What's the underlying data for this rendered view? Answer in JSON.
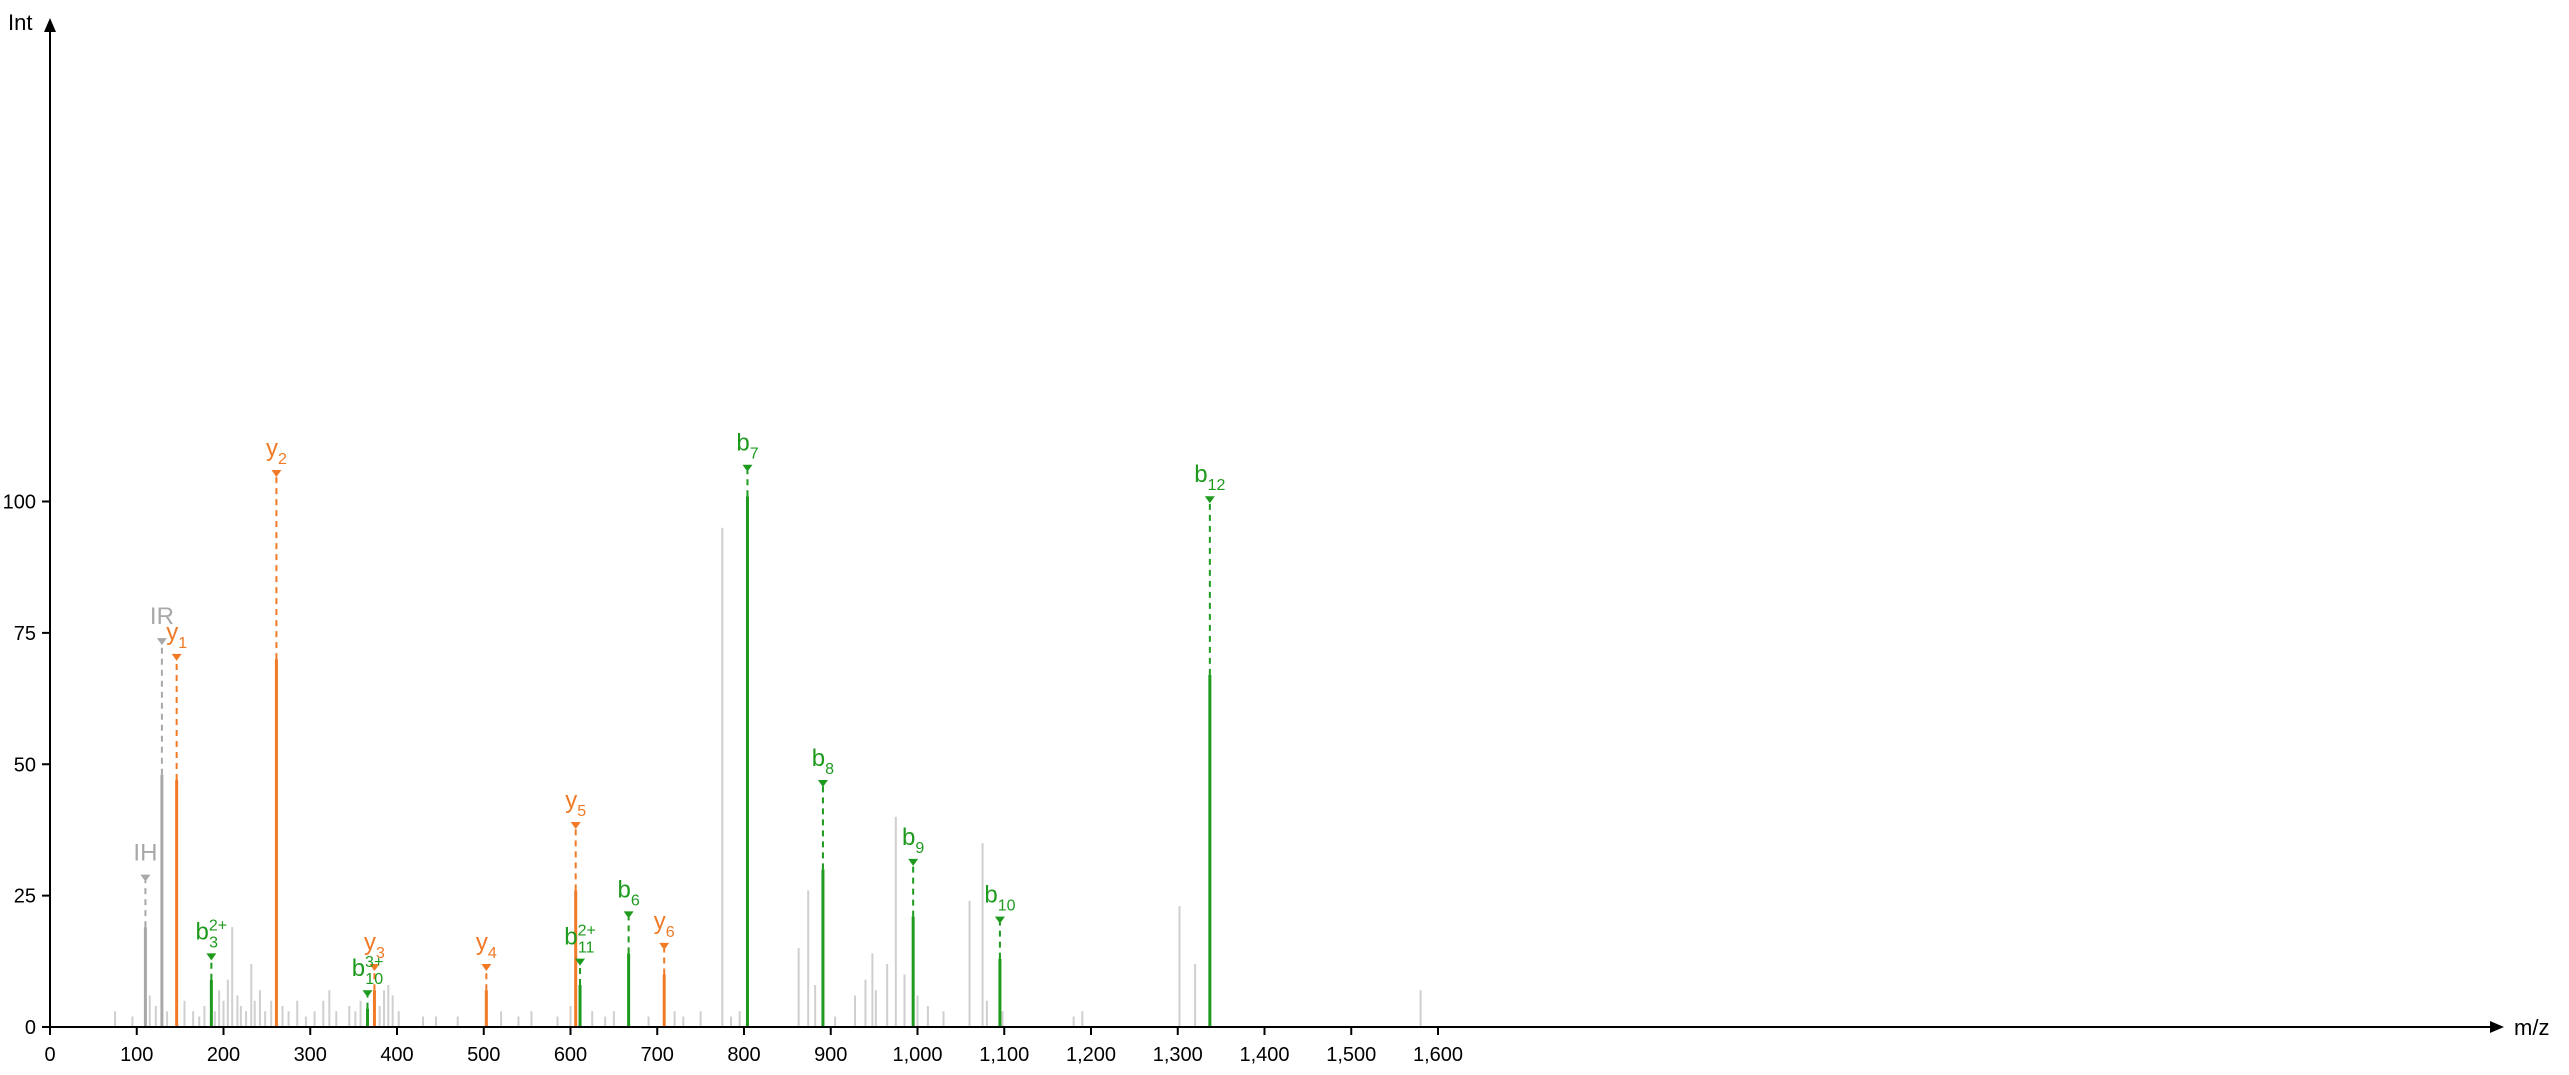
{
  "chart_data": {
    "type": "bar",
    "title": "",
    "xlabel": "m/z",
    "ylabel": "Int",
    "xlim": [
      0,
      1700
    ],
    "ylim": [
      0,
      115
    ],
    "x_ticks": [
      {
        "value": 0,
        "label": "0"
      },
      {
        "value": 100,
        "label": "100"
      },
      {
        "value": 200,
        "label": "200"
      },
      {
        "value": 300,
        "label": "300"
      },
      {
        "value": 400,
        "label": "400"
      },
      {
        "value": 500,
        "label": "500"
      },
      {
        "value": 600,
        "label": "600"
      },
      {
        "value": 700,
        "label": "700"
      },
      {
        "value": 800,
        "label": "800"
      },
      {
        "value": 900,
        "label": "900"
      },
      {
        "value": 1000,
        "label": "1,000"
      },
      {
        "value": 1100,
        "label": "1,100"
      },
      {
        "value": 1200,
        "label": "1,200"
      },
      {
        "value": 1300,
        "label": "1,300"
      },
      {
        "value": 1400,
        "label": "1,400"
      },
      {
        "value": 1500,
        "label": "1,500"
      },
      {
        "value": 1600,
        "label": "1,600"
      }
    ],
    "y_ticks": [
      {
        "value": 0,
        "label": "0"
      },
      {
        "value": 25,
        "label": "25"
      },
      {
        "value": 50,
        "label": "50"
      },
      {
        "value": 75,
        "label": "75"
      },
      {
        "value": 100,
        "label": "100"
      }
    ],
    "grid": false,
    "colors": {
      "y": "#f07a25",
      "b": "#1e9a1e",
      "other": "#a8a8a8",
      "noise": "#cfcfcf"
    },
    "noise_peaks": [
      [
        75,
        3
      ],
      [
        95,
        2
      ],
      [
        115,
        6
      ],
      [
        122,
        4
      ],
      [
        135,
        3
      ],
      [
        155,
        5
      ],
      [
        165,
        3
      ],
      [
        172,
        2
      ],
      [
        178,
        4
      ],
      [
        190,
        3
      ],
      [
        195,
        7
      ],
      [
        200,
        5
      ],
      [
        205,
        9
      ],
      [
        210,
        19
      ],
      [
        216,
        6
      ],
      [
        220,
        4
      ],
      [
        226,
        3
      ],
      [
        232,
        12
      ],
      [
        236,
        5
      ],
      [
        242,
        7
      ],
      [
        248,
        3
      ],
      [
        255,
        5
      ],
      [
        268,
        4
      ],
      [
        275,
        3
      ],
      [
        285,
        5
      ],
      [
        295,
        2
      ],
      [
        305,
        3
      ],
      [
        315,
        5
      ],
      [
        322,
        7
      ],
      [
        330,
        3
      ],
      [
        345,
        4
      ],
      [
        352,
        3
      ],
      [
        358,
        5
      ],
      [
        380,
        4
      ],
      [
        385,
        7
      ],
      [
        390,
        8
      ],
      [
        395,
        6
      ],
      [
        402,
        3
      ],
      [
        430,
        2
      ],
      [
        445,
        2
      ],
      [
        470,
        2
      ],
      [
        520,
        3
      ],
      [
        540,
        2
      ],
      [
        555,
        3
      ],
      [
        585,
        2
      ],
      [
        600,
        4
      ],
      [
        625,
        3
      ],
      [
        640,
        2
      ],
      [
        650,
        3
      ],
      [
        690,
        2
      ],
      [
        720,
        3
      ],
      [
        730,
        2
      ],
      [
        750,
        3
      ],
      [
        775,
        95
      ],
      [
        785,
        2
      ],
      [
        795,
        3
      ],
      [
        863,
        15
      ],
      [
        874,
        26
      ],
      [
        882,
        8
      ],
      [
        905,
        2
      ],
      [
        928,
        6
      ],
      [
        940,
        9
      ],
      [
        948,
        14
      ],
      [
        952,
        7
      ],
      [
        965,
        12
      ],
      [
        975,
        40
      ],
      [
        985,
        10
      ],
      [
        1000,
        6
      ],
      [
        1012,
        4
      ],
      [
        1030,
        3
      ],
      [
        1060,
        24
      ],
      [
        1075,
        35
      ],
      [
        1080,
        5
      ],
      [
        1098,
        3
      ],
      [
        1180,
        2
      ],
      [
        1190,
        3
      ],
      [
        1302,
        23
      ],
      [
        1320,
        12
      ],
      [
        1580,
        7
      ]
    ],
    "annotated_peaks": [
      {
        "x": 110,
        "y": 19,
        "marker_y": 29,
        "series": "other",
        "label": "IH",
        "sub": "",
        "sup": ""
      },
      {
        "x": 129,
        "y": 48,
        "marker_y": 74,
        "series": "other",
        "label": "IR",
        "sub": "",
        "sup": ""
      },
      {
        "x": 146,
        "y": 47,
        "marker_y": 71,
        "series": "y",
        "label": "y",
        "sub": "1",
        "sup": ""
      },
      {
        "x": 261,
        "y": 70,
        "marker_y": 106,
        "series": "y",
        "label": "y",
        "sub": "2",
        "sup": ""
      },
      {
        "x": 186,
        "y": 9,
        "marker_y": 14,
        "series": "b",
        "label": "b",
        "sub": "3",
        "sup": "2+"
      },
      {
        "x": 366,
        "y": 3.5,
        "marker_y": 7,
        "series": "b",
        "label": "b",
        "sub": "10",
        "sup": "3+"
      },
      {
        "x": 374,
        "y": 7,
        "marker_y": 12,
        "series": "y",
        "label": "y",
        "sub": "3",
        "sup": ""
      },
      {
        "x": 503,
        "y": 7,
        "marker_y": 12,
        "series": "y",
        "label": "y",
        "sub": "4",
        "sup": ""
      },
      {
        "x": 606,
        "y": 26,
        "marker_y": 39,
        "series": "y",
        "label": "y",
        "sub": "5",
        "sup": ""
      },
      {
        "x": 611,
        "y": 8,
        "marker_y": 13,
        "series": "b",
        "label": "b",
        "sub": "11",
        "sup": "2+"
      },
      {
        "x": 667,
        "y": 14,
        "marker_y": 22,
        "series": "b",
        "label": "b",
        "sub": "6",
        "sup": ""
      },
      {
        "x": 708,
        "y": 10,
        "marker_y": 16,
        "series": "y",
        "label": "y",
        "sub": "6",
        "sup": ""
      },
      {
        "x": 804,
        "y": 101,
        "marker_y": 107,
        "series": "b",
        "label": "b",
        "sub": "7",
        "sup": ""
      },
      {
        "x": 891,
        "y": 30,
        "marker_y": 47,
        "series": "b",
        "label": "b",
        "sub": "8",
        "sup": ""
      },
      {
        "x": 995,
        "y": 21,
        "marker_y": 32,
        "series": "b",
        "label": "b",
        "sub": "9",
        "sup": ""
      },
      {
        "x": 1095,
        "y": 13,
        "marker_y": 21,
        "series": "b",
        "label": "b",
        "sub": "10",
        "sup": ""
      },
      {
        "x": 1337,
        "y": 67,
        "marker_y": 101,
        "series": "b",
        "label": "b",
        "sub": "12",
        "sup": ""
      }
    ]
  }
}
